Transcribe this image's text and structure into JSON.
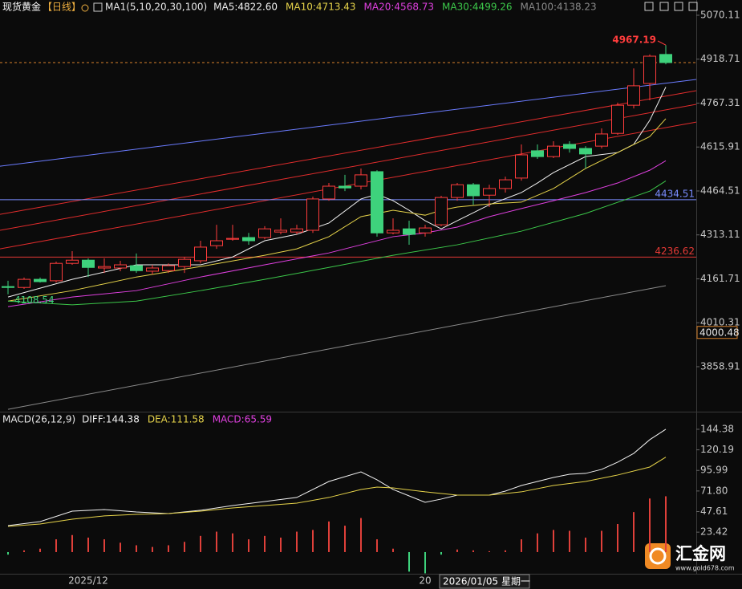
{
  "chart_data": [
    {
      "type": "candlestick",
      "title": "现货黄金",
      "subtitle": "【日线】",
      "indicator": "MA1(5,10,20,30,100)",
      "categories": [
        null,
        null,
        null,
        null,
        null,
        "2025/12",
        null,
        null,
        null,
        null,
        null,
        null,
        null,
        null,
        null,
        null,
        null,
        null,
        null,
        null,
        null,
        null,
        null,
        null,
        null,
        null,
        "20",
        null,
        null,
        null,
        null,
        null,
        null,
        null,
        null,
        null,
        null,
        null,
        null,
        null,
        null,
        null
      ],
      "crosshair_label": "2026/01/05 星期一",
      "open": [
        4135,
        4132,
        4160,
        4155,
        4215,
        4226,
        4199,
        4199,
        4207,
        4188,
        4190,
        4204,
        4224,
        4276,
        4298,
        4304,
        4304,
        4323,
        4323,
        4329,
        4437,
        4481,
        4481,
        4531,
        4320,
        4334,
        4320,
        4348,
        4442,
        4486,
        4450,
        4473,
        4509,
        4603,
        4583,
        4625,
        4611,
        4619,
        4663,
        4760,
        4835,
        4935
      ],
      "high": [
        4155,
        4166,
        4166,
        4221,
        4257,
        4232,
        4232,
        4224,
        4249,
        4210,
        4215,
        4237,
        4293,
        4348,
        4348,
        4320,
        4343,
        4370,
        4348,
        4445,
        4492,
        4520,
        4542,
        4536,
        4370,
        4362,
        4348,
        4448,
        4492,
        4492,
        4486,
        4514,
        4625,
        4625,
        4636,
        4636,
        4619,
        4680,
        4769,
        4887,
        4935,
        4967.19
      ],
      "low": [
        4108.54,
        4127,
        4149,
        4149,
        4210,
        4168,
        4182,
        4188,
        4182,
        4177,
        4182,
        4182,
        4215,
        4265,
        4293,
        4279,
        4298,
        4315,
        4315,
        4320,
        4431,
        4464,
        4470,
        4307,
        4315,
        4279,
        4307,
        4343,
        4431,
        4417,
        4409,
        4459,
        4500,
        4575,
        4578,
        4597,
        4542,
        4611,
        4658,
        4749,
        4777,
        4901
      ],
      "close": [
        4132,
        4160,
        4152,
        4215,
        4226,
        4201,
        4204,
        4210,
        4190,
        4199,
        4207,
        4229,
        4271,
        4293,
        4301,
        4293,
        4334,
        4329,
        4334,
        4437,
        4481,
        4475,
        4520,
        4320,
        4329,
        4315,
        4337,
        4442,
        4486,
        4448,
        4473,
        4503,
        4589,
        4583,
        4619,
        4611,
        4592,
        4661,
        4760,
        4827,
        4929,
        4907
      ],
      "up_color": "#ff3c3c",
      "down_color": "#3ed27c",
      "last_price_color": "#d9822b",
      "ylim": [
        3706.7,
        5122.65
      ],
      "yticks": [
        5070.11,
        4918.71,
        4767.31,
        4615.91,
        4464.51,
        4313.11,
        4161.71,
        4010.31,
        3858.91
      ],
      "lines": [
        {
          "name": "MA5:4822.60",
          "color": "#f2f2f2",
          "x": [
            0,
            4,
            8,
            12,
            14,
            16,
            18,
            20,
            22,
            23,
            24,
            25,
            26,
            27,
            28,
            30,
            32,
            33,
            34,
            36,
            38,
            39,
            40,
            41
          ],
          "values": [
            4099,
            4160,
            4210,
            4210,
            4237,
            4293,
            4315,
            4354,
            4437,
            4453,
            4431,
            4398,
            4362,
            4334,
            4362,
            4417,
            4459,
            4492,
            4528,
            4583,
            4597,
            4625,
            4708,
            4822.6
          ]
        },
        {
          "name": "MA10:4713.43",
          "color": "#e6d34a",
          "x": [
            0,
            4,
            8,
            12,
            16,
            18,
            20,
            22,
            24,
            26,
            27,
            28,
            30,
            32,
            34,
            36,
            38,
            40,
            41
          ],
          "values": [
            4085,
            4121,
            4168,
            4204,
            4243,
            4265,
            4307,
            4376,
            4398,
            4381,
            4398,
            4409,
            4420,
            4426,
            4473,
            4542,
            4597,
            4652,
            4713.43
          ]
        },
        {
          "name": "MA20:4568.73",
          "color": "#e040e0",
          "x": [
            0,
            4,
            8,
            12,
            16,
            20,
            22,
            24,
            26,
            28,
            30,
            32,
            34,
            36,
            38,
            40,
            41
          ],
          "values": [
            4066,
            4099,
            4121,
            4168,
            4210,
            4251,
            4279,
            4307,
            4320,
            4340,
            4376,
            4404,
            4431,
            4459,
            4492,
            4536,
            4568.73
          ]
        },
        {
          "name": "MA30:4499.26",
          "color": "#3cc84a",
          "x": [
            0,
            4,
            8,
            12,
            16,
            20,
            24,
            28,
            32,
            36,
            40,
            41
          ],
          "values": [
            4085,
            4072,
            4085,
            4121,
            4160,
            4201,
            4243,
            4279,
            4326,
            4387,
            4464,
            4499.26
          ]
        },
        {
          "name": "MA100:4138.23",
          "color": "#8a8a8a",
          "x": [
            0,
            20,
            41
          ],
          "values": [
            3712,
            3920,
            4138.23
          ]
        }
      ],
      "trendlines": [
        {
          "color": "#6b7cff",
          "values": [
            4550,
            4849
          ]
        },
        {
          "color": "#e02c2c",
          "values": [
            4384,
            4810
          ]
        },
        {
          "color": "#e02c2c",
          "values": [
            4329,
            4763
          ]
        },
        {
          "color": "#e02c2c",
          "values": [
            4265,
            4702
          ]
        }
      ],
      "levels": [
        {
          "value": 4434.51,
          "color": "#7a8cff",
          "line": true
        },
        {
          "value": 4236.62,
          "color": "#e53935",
          "line": true
        },
        {
          "value": 4000.48,
          "color": "#d9822b",
          "line": false
        }
      ]
    },
    {
      "type": "macd",
      "title": "MACD(26,12,9)",
      "ylim": [
        -25.5,
        163.2
      ],
      "yticks": [
        144.38,
        120.19,
        95.99,
        {
          "value": 71.8,
          "label": "71.80"
        },
        47.61,
        23.42
      ],
      "series": [
        {
          "name": "DIFF:144.38",
          "color": "#f2f2f2",
          "x": [
            0,
            2,
            4,
            6,
            8,
            10,
            12,
            14,
            16,
            18,
            20,
            22,
            23,
            24,
            26,
            27,
            28,
            30,
            31,
            32,
            34,
            35,
            36,
            37,
            38,
            39,
            40,
            41
          ],
          "values": [
            31.1,
            35.8,
            48.1,
            50.0,
            47.2,
            45.3,
            49.1,
            54.7,
            59.4,
            64.2,
            83.0,
            94.3,
            84.9,
            73.6,
            58.5,
            62.3,
            67.0,
            67.0,
            71.7,
            78.3,
            87.7,
            91.5,
            92.5,
            97.2,
            105.7,
            116.0,
            132.1,
            144.38
          ]
        },
        {
          "name": "DEA:111.58",
          "color": "#e6d34a",
          "x": [
            0,
            2,
            4,
            6,
            8,
            10,
            12,
            14,
            16,
            18,
            20,
            22,
            23,
            24,
            26,
            28,
            30,
            32,
            34,
            36,
            38,
            40,
            41
          ],
          "values": [
            30.2,
            33.0,
            38.7,
            42.5,
            44.3,
            45.3,
            48.1,
            51.9,
            54.7,
            57.5,
            64.2,
            73.6,
            76.4,
            75.5,
            70.8,
            67.0,
            67.0,
            70.8,
            78.3,
            83.0,
            90.6,
            100.0,
            111.58
          ]
        }
      ],
      "histogram": {
        "name": "MACD:65.59",
        "color": "#e040e0",
        "up_color": "#e0403a",
        "down_color": "#3ed27c",
        "values": [
          -3,
          2,
          4,
          15,
          20,
          17,
          15,
          11,
          8,
          6,
          8,
          12,
          19,
          24,
          22,
          15,
          19,
          17,
          24,
          26,
          36,
          31,
          40,
          15,
          4,
          -23,
          -25,
          -3,
          3,
          2,
          1,
          2,
          15,
          22,
          26,
          25,
          17,
          25,
          33,
          47,
          63,
          65.59
        ]
      }
    }
  ],
  "logo": {
    "name": "汇金网",
    "url": "www.gold678.com"
  }
}
